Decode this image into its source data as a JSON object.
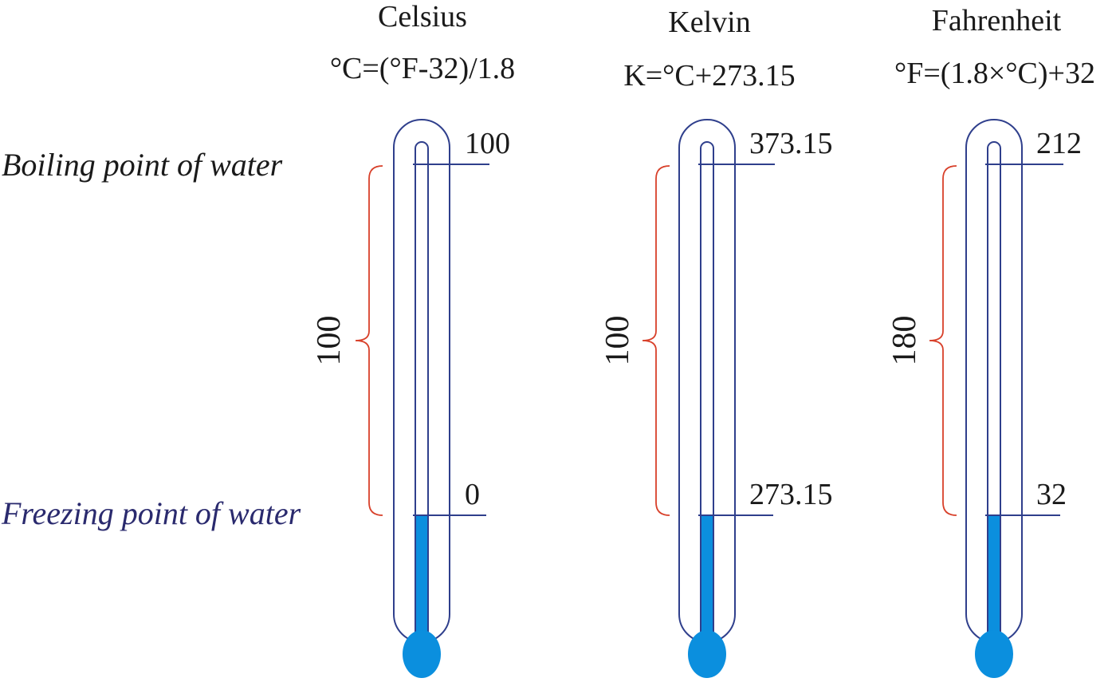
{
  "labels": {
    "boiling": "Boiling point of water",
    "freezing": "Freezing point of water"
  },
  "colors": {
    "boiling_label": "#1a1a1a",
    "freezing_label": "#2a2a6e",
    "outline": "#2f3f8c",
    "mercury": "#0b8fde",
    "brace": "#d8402a"
  },
  "scales": [
    {
      "name": "Celsius",
      "formula": "°C=(°F-32)/1.8",
      "boiling": "100",
      "freezing": "0",
      "interval": "100"
    },
    {
      "name": "Kelvin",
      "formula": "K=°C+273.15",
      "boiling": "373.15",
      "freezing": "273.15",
      "interval": "100"
    },
    {
      "name": "Fahrenheit",
      "formula": "°F=(1.8×°C)+32",
      "boiling": "212",
      "freezing": "32",
      "interval": "180"
    }
  ]
}
